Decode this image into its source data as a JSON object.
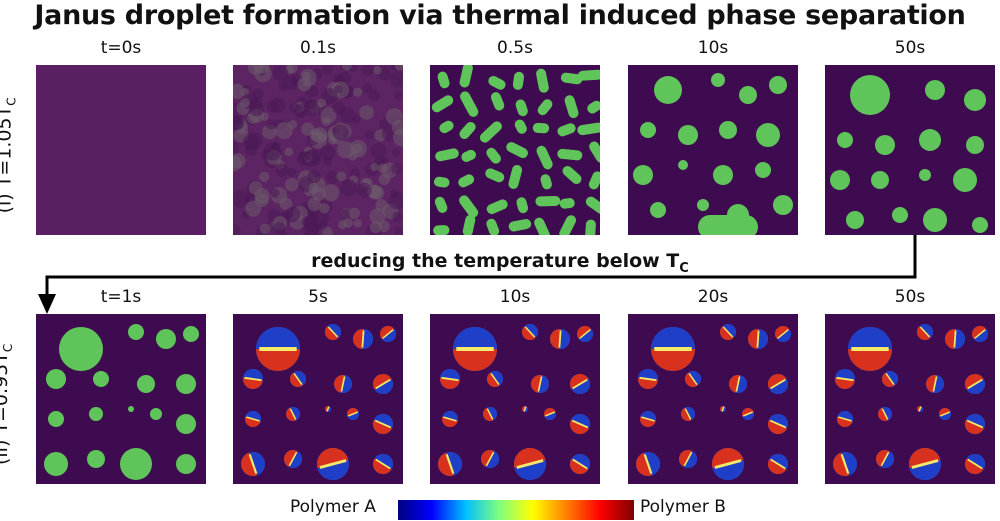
{
  "title": "Janus droplet formation via thermal induced phase separation",
  "row1": {
    "label": "(i) T=1.05T",
    "label_sub": "C",
    "times": [
      "t=0s",
      "0.1s",
      "0.5s",
      "10s",
      "50s"
    ]
  },
  "transition": {
    "text": "reducing the temperature below T",
    "text_sub": "C"
  },
  "row2": {
    "label": "(ii) T=0.95T",
    "label_sub": "C",
    "times": [
      "t=1s",
      "5s",
      "10s",
      "20s",
      "50s"
    ]
  },
  "colorbar": {
    "left_label": "Polymer A",
    "right_label": "Polymer B",
    "colors": [
      "#00007f",
      "#0000ff",
      "#00bfff",
      "#7fff7f",
      "#ffff00",
      "#ff7f00",
      "#ff0000",
      "#7f0000"
    ]
  },
  "colors": {
    "background_matrix": "#3f0b50",
    "mixed": "#5c2462",
    "droplet": "#5fc55a"
  }
}
